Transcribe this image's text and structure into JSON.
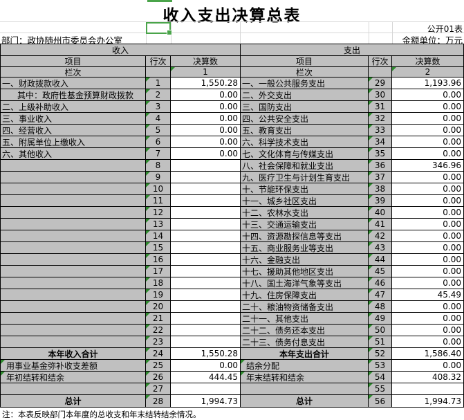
{
  "title": "收入支出决算总表",
  "table_code": "公开01表",
  "department": "部门：政协随州市委员会办公室",
  "unit": "金额单位：万元",
  "note": "注：本表反映部门本年度的总收支和年末结转结余情况。",
  "headers": {
    "income_section": "收入",
    "expense_section": "支出",
    "item": "项目",
    "line": "行次",
    "amount": "决算数",
    "column_row": "栏次",
    "income_col_index": "1",
    "expense_col_index": "2"
  },
  "colors": {
    "cell_gray": "#c0c0c0",
    "selection_green": "#4aa44a",
    "triangle_green": "#2e8b2e",
    "border_black": "#000000",
    "gridline_gray": "#d6d6d6"
  },
  "income_rows": [
    {
      "label": "一、财政拨款收入",
      "line": "1",
      "value": "1,550.28"
    },
    {
      "label": "其中：政府性基金预算财政拨款",
      "line": "2",
      "value": "0.00",
      "indent": 24
    },
    {
      "label": "二、上级补助收入",
      "line": "3",
      "value": "0.00"
    },
    {
      "label": "三、事业收入",
      "line": "4",
      "value": "0.00"
    },
    {
      "label": "四、经营收入",
      "line": "5",
      "value": "0.00"
    },
    {
      "label": "五、附属单位上缴收入",
      "line": "6",
      "value": "0.00"
    },
    {
      "label": "六、其他收入",
      "line": "7",
      "value": "0.00"
    },
    {
      "label": "",
      "line": "8",
      "value": ""
    },
    {
      "label": "",
      "line": "9",
      "value": ""
    },
    {
      "label": "",
      "line": "10",
      "value": ""
    },
    {
      "label": "",
      "line": "11",
      "value": ""
    },
    {
      "label": "",
      "line": "12",
      "value": ""
    },
    {
      "label": "",
      "line": "13",
      "value": ""
    },
    {
      "label": "",
      "line": "14",
      "value": ""
    },
    {
      "label": "",
      "line": "15",
      "value": ""
    },
    {
      "label": "",
      "line": "16",
      "value": ""
    },
    {
      "label": "",
      "line": "17",
      "value": ""
    },
    {
      "label": "",
      "line": "18",
      "value": ""
    },
    {
      "label": "",
      "line": "19",
      "value": ""
    },
    {
      "label": "",
      "line": "20",
      "value": ""
    },
    {
      "label": "",
      "line": "21",
      "value": ""
    },
    {
      "label": "",
      "line": "22",
      "value": ""
    },
    {
      "label": "",
      "line": "23",
      "value": ""
    },
    {
      "label": "本年收入合计",
      "line": "24",
      "value": "1,550.28",
      "bold": true,
      "center": true
    },
    {
      "label": "用事业基金弥补收支差额",
      "line": "25",
      "value": "0.00",
      "indent": 8,
      "tri": true
    },
    {
      "label": "年初结转和结余",
      "line": "26",
      "value": "444.45",
      "indent": 8,
      "tri": true
    },
    {
      "label": "",
      "line": "27",
      "value": ""
    },
    {
      "label": "总计",
      "line": "28",
      "value": "1,994.73",
      "bold": true,
      "center": true
    }
  ],
  "expense_rows": [
    {
      "label": "一、一般公共服务支出",
      "line": "29",
      "value": "1,193.96"
    },
    {
      "label": "二、外交支出",
      "line": "30",
      "value": "0.00"
    },
    {
      "label": "三、国防支出",
      "line": "31",
      "value": "0.00"
    },
    {
      "label": "四、公共安全支出",
      "line": "32",
      "value": "0.00"
    },
    {
      "label": "五、教育支出",
      "line": "33",
      "value": "0.00"
    },
    {
      "label": "六、科学技术支出",
      "line": "34",
      "value": "0.00"
    },
    {
      "label": "七、文化体育与传媒支出",
      "line": "35",
      "value": "0.00"
    },
    {
      "label": "八、社会保障和就业支出",
      "line": "36",
      "value": "346.96"
    },
    {
      "label": "九、医疗卫生与计划生育支出",
      "line": "37",
      "value": "0.00"
    },
    {
      "label": "十、节能环保支出",
      "line": "38",
      "value": "0.00"
    },
    {
      "label": "十一、城乡社区支出",
      "line": "39",
      "value": "0.00"
    },
    {
      "label": "十二、农林水支出",
      "line": "40",
      "value": "0.00"
    },
    {
      "label": "十三、交通运输支出",
      "line": "41",
      "value": "0.00"
    },
    {
      "label": "十四、资源勘探信息等支出",
      "line": "42",
      "value": "0.00"
    },
    {
      "label": "十五、商业服务业等支出",
      "line": "43",
      "value": "0.00"
    },
    {
      "label": "十六、金融支出",
      "line": "44",
      "value": "0.00"
    },
    {
      "label": "十七、援助其他地区支出",
      "line": "45",
      "value": "0.00"
    },
    {
      "label": "十八、国土海洋气象等支出",
      "line": "46",
      "value": "0.00"
    },
    {
      "label": "十九、住房保障支出",
      "line": "47",
      "value": "45.49"
    },
    {
      "label": "二十、粮油物资储备支出",
      "line": "48",
      "value": "0.00"
    },
    {
      "label": "二十一、其他支出",
      "line": "49",
      "value": "0.00"
    },
    {
      "label": "二十二、债务还本支出",
      "line": "50",
      "value": "0.00"
    },
    {
      "label": "二十三、债务付息支出",
      "line": "51",
      "value": "0.00"
    },
    {
      "label": "本年支出合计",
      "line": "52",
      "value": "1,586.40",
      "bold": true,
      "center": true
    },
    {
      "label": "结余分配",
      "line": "53",
      "value": "0.00",
      "indent": 8,
      "tri": true
    },
    {
      "label": "年末结转和结余",
      "line": "54",
      "value": "408.32",
      "indent": 8,
      "tri": true
    },
    {
      "label": "",
      "line": "55",
      "value": ""
    },
    {
      "label": "总计",
      "line": "56",
      "value": "1,994.73",
      "bold": true,
      "center": true
    }
  ]
}
